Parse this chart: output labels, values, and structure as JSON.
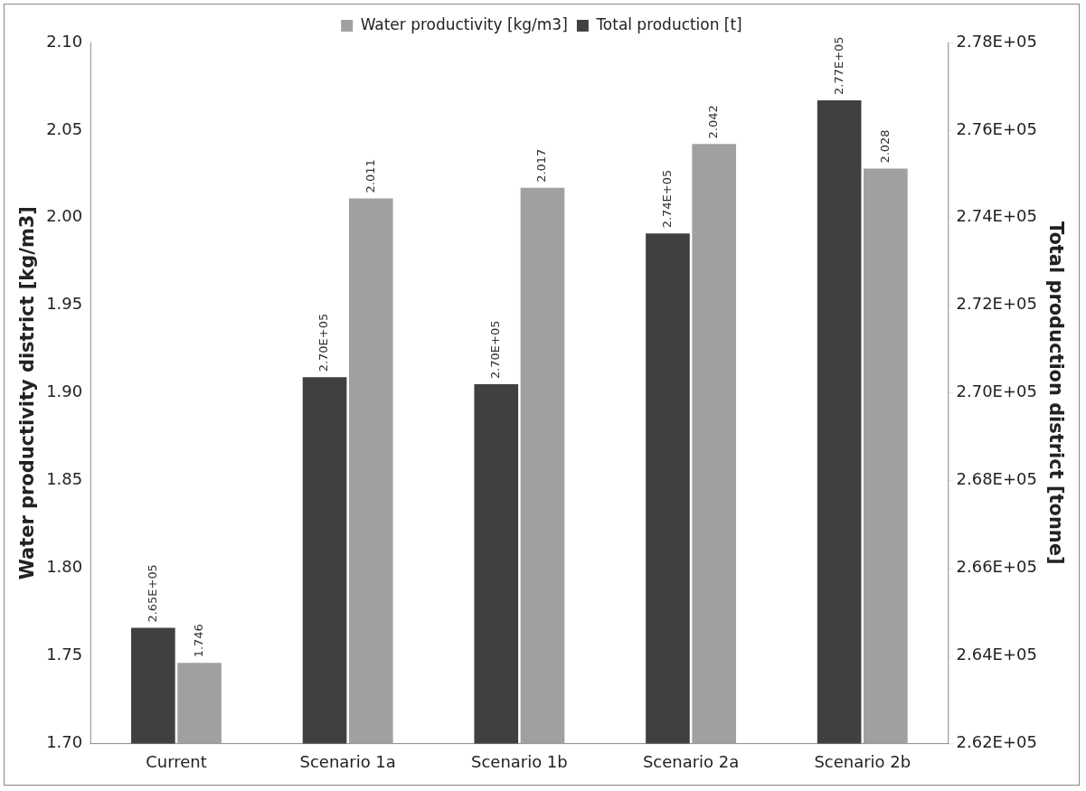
{
  "chart_data": {
    "type": "bar",
    "ylabel": "Water productivity district [kg/m3]",
    "y2label": "Total production district [tonne]",
    "categories": [
      "Current",
      "Scenario 1a",
      "Scenario 1b",
      "Scenario 2a",
      "Scenario 2b"
    ],
    "series": [
      {
        "name": "Total production [t]",
        "color": "#404040",
        "axis": "y2",
        "values": [
          264640,
          270360,
          270200,
          273640,
          276680
        ],
        "value_labels": [
          "2.65E+05",
          "2.70E+05",
          "2.70E+05",
          "2.74E+05",
          "2.77E+05"
        ]
      },
      {
        "name": "Water productivity [kg/m3]",
        "color": "#a0a0a0",
        "values": [
          1.746,
          2.011,
          2.017,
          2.042,
          2.028
        ],
        "value_labels": [
          "1.746",
          "2.011",
          "2.017",
          "2.042",
          "2.028"
        ]
      }
    ],
    "ylim": [
      1.7,
      2.1
    ],
    "yticks": [
      {
        "value": 1.7,
        "label": "1.70"
      },
      {
        "value": 1.75,
        "label": "1.75"
      },
      {
        "value": 1.8,
        "label": "1.80"
      },
      {
        "value": 1.85,
        "label": "1.85"
      },
      {
        "value": 1.9,
        "label": "1.90"
      },
      {
        "value": 1.95,
        "label": "1.95"
      },
      {
        "value": 2.0,
        "label": "2.00"
      },
      {
        "value": 2.05,
        "label": "2.05"
      },
      {
        "value": 2.1,
        "label": "2.10"
      }
    ],
    "y2lim": [
      262000,
      278000
    ],
    "y2ticks": [
      {
        "value": 262000,
        "label": "2.62E+05"
      },
      {
        "value": 264000,
        "label": "2.64E+05"
      },
      {
        "value": 266000,
        "label": "2.66E+05"
      },
      {
        "value": 268000,
        "label": "2.68E+05"
      },
      {
        "value": 270000,
        "label": "2.70E+05"
      },
      {
        "value": 272000,
        "label": "2.72E+05"
      },
      {
        "value": 274000,
        "label": "2.74E+05"
      },
      {
        "value": 276000,
        "label": "2.76E+05"
      },
      {
        "value": 278000,
        "label": "2.78E+05"
      }
    ],
    "grid": false,
    "legend": "top"
  }
}
